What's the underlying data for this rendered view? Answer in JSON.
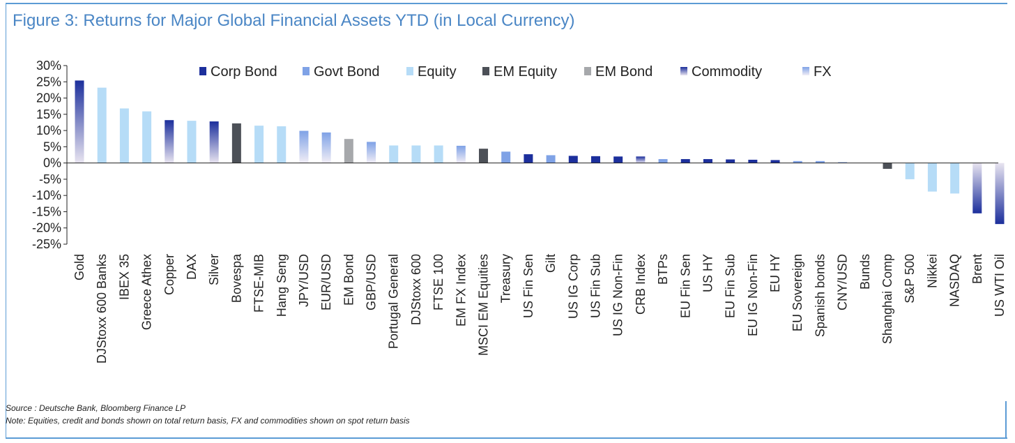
{
  "figure": {
    "title": "Figure 3: Returns for Major Global Financial Assets YTD (in Local Currency)",
    "source": "Source : Deutsche Bank, Bloomberg Finance LP",
    "note": "Note: Equities, credit and bonds shown on total return basis, FX and commodities shown on spot return basis"
  },
  "colors": {
    "Corp Bond": "#1c2f9c",
    "Govt Bond": "#7fa2e6",
    "Equity": "#b6dcf7",
    "EM Equity": "#4c5057",
    "EM Bond": "#a6a8ab",
    "Commodity": "#1c2f9c",
    "Commodity_light": "#e8e4f0",
    "FX": "#7fa2e6",
    "FX_light": "#f2eef6",
    "axis": "#222222",
    "title": "#4a86c5"
  },
  "chart_data": {
    "type": "bar",
    "title": "Figure 3: Returns for Major Global Financial Assets YTD (in Local Currency)",
    "xlabel": "",
    "ylabel": "",
    "ylim": [
      -25,
      30
    ],
    "yticks": [
      30,
      25,
      20,
      15,
      10,
      5,
      0,
      -5,
      -10,
      -15,
      -20,
      -25
    ],
    "ytick_labels": [
      "30%",
      "25%",
      "20%",
      "15%",
      "10%",
      "5%",
      "0%",
      "-5%",
      "-10%",
      "-15%",
      "-20%",
      "-25%"
    ],
    "legend": [
      "Corp Bond",
      "Govt Bond",
      "Equity",
      "EM Equity",
      "EM Bond",
      "Commodity",
      "FX"
    ],
    "legend_position": "top",
    "categories": [
      "Gold",
      "DJStoxx 600 Banks",
      "IBEX 35",
      "Greece Athex",
      "Copper",
      "DAX",
      "Silver",
      "Bovespa",
      "FTSE-MIB",
      "Hang Seng",
      "JPY/USD",
      "EUR/USD",
      "EM Bond",
      "GBP/USD",
      "Portugal General",
      "DJStoxx 600",
      "FTSE 100",
      "EM FX Index",
      "MSCI EM Equities",
      "Treasury",
      "US Fin Sen",
      "Gilt",
      "US IG Corp",
      "US Fin Sub",
      "US IG Non-Fin",
      "CRB Index",
      "BTPs",
      "EU Fin Sen",
      "US HY",
      "EU Fin Sub",
      "EU IG Non-Fin",
      "EU HY",
      "EU Sovereign",
      "Spanish bonds",
      "CNY/USD",
      "Bunds",
      "Shanghai Comp",
      "S&P 500",
      "Nikkei",
      "NASDAQ",
      "Brent",
      "US WTI Oil"
    ],
    "values": [
      25.4,
      23.2,
      16.8,
      15.9,
      13.2,
      13.0,
      12.8,
      12.2,
      11.5,
      11.3,
      9.9,
      9.4,
      7.4,
      6.5,
      5.4,
      5.4,
      5.4,
      5.3,
      4.4,
      3.5,
      2.7,
      2.4,
      2.2,
      2.1,
      2.0,
      2.0,
      1.2,
      1.2,
      1.2,
      1.1,
      1.0,
      0.9,
      0.6,
      0.6,
      0.3,
      0.0,
      -1.8,
      -5.0,
      -8.8,
      -9.4,
      -15.5,
      -18.8
    ],
    "groups": [
      "Commodity",
      "Equity",
      "Equity",
      "Equity",
      "Commodity",
      "Equity",
      "Commodity",
      "EM Equity",
      "Equity",
      "Equity",
      "FX",
      "FX",
      "EM Bond",
      "FX",
      "Equity",
      "Equity",
      "Equity",
      "FX",
      "EM Equity",
      "Govt Bond",
      "Corp Bond",
      "Govt Bond",
      "Corp Bond",
      "Corp Bond",
      "Corp Bond",
      "Commodity",
      "Govt Bond",
      "Corp Bond",
      "Corp Bond",
      "Corp Bond",
      "Corp Bond",
      "Corp Bond",
      "Govt Bond",
      "Govt Bond",
      "FX",
      "Govt Bond",
      "EM Equity",
      "Equity",
      "Equity",
      "Equity",
      "Commodity",
      "Commodity"
    ]
  }
}
